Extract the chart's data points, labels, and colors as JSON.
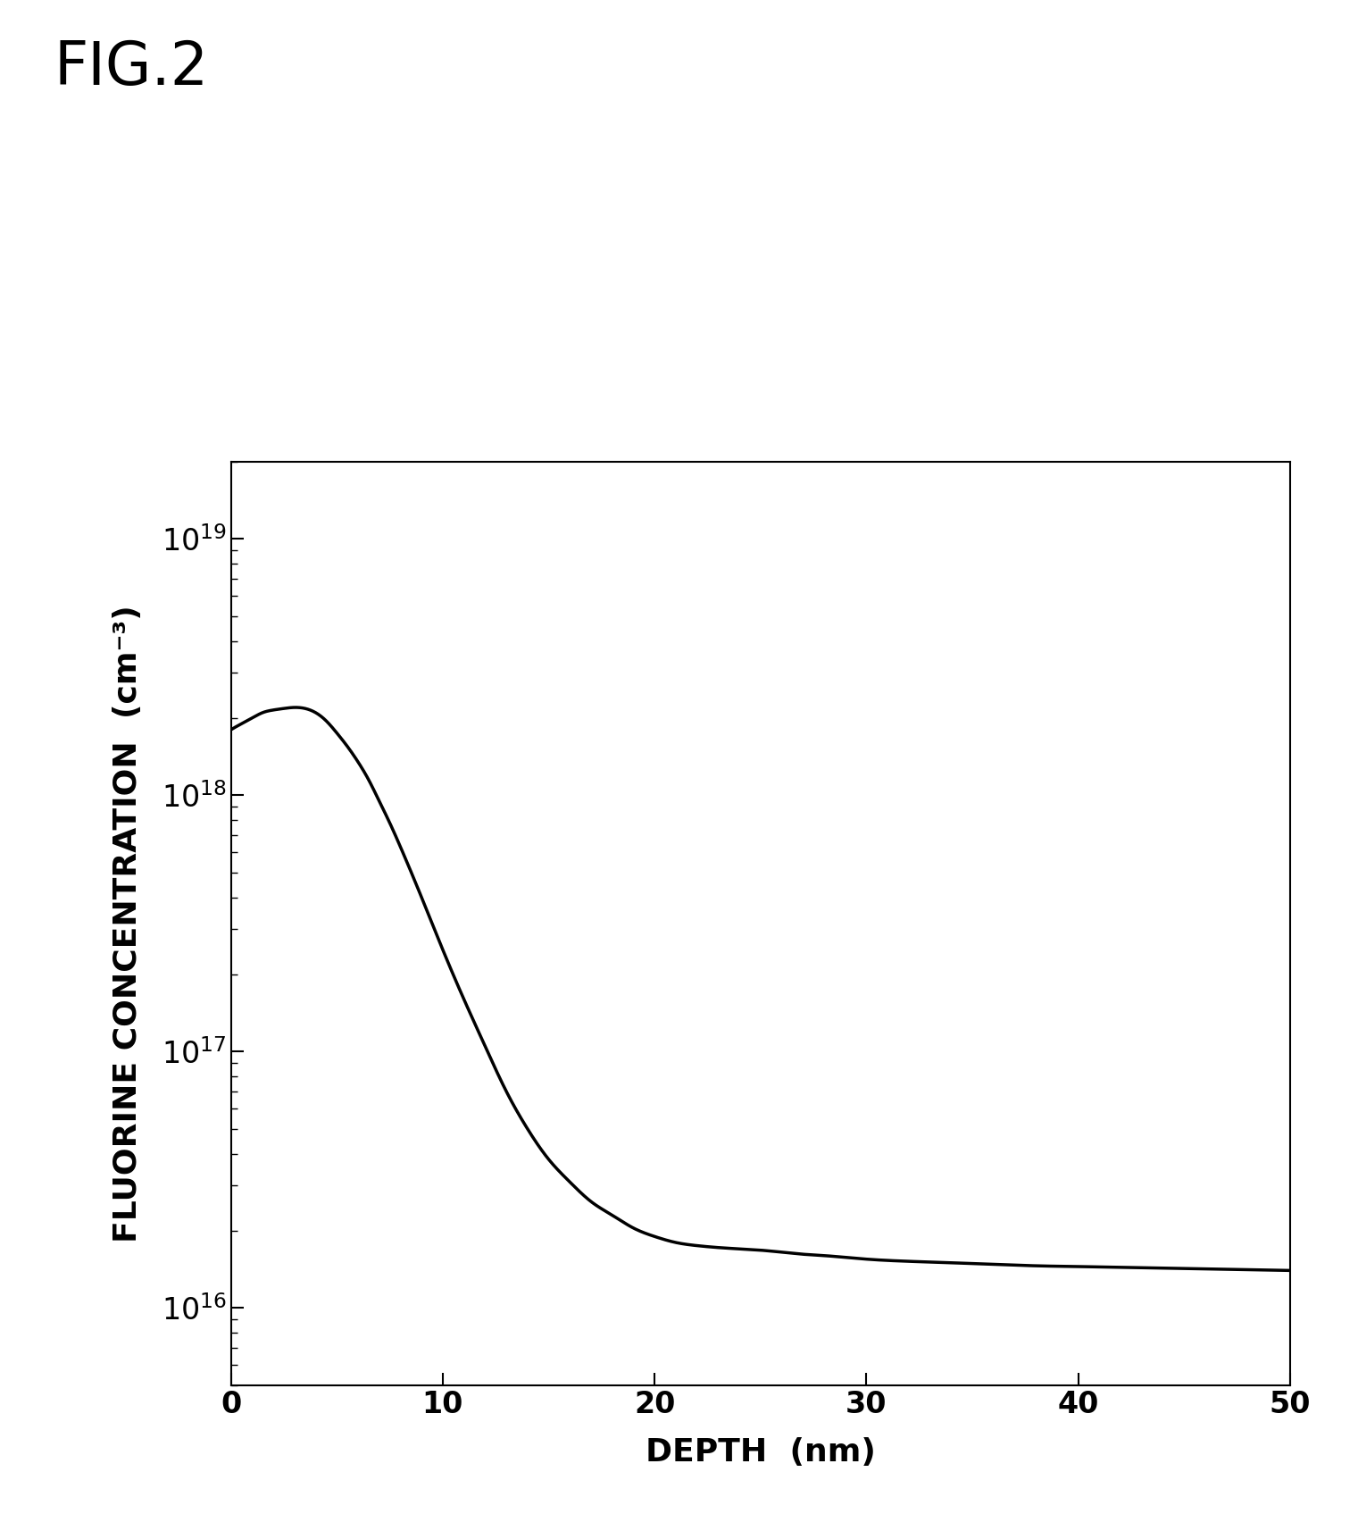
{
  "fig_label": "FIG.2",
  "xlabel": "DEPTH  (nm)",
  "ylabel": "FLUORINE CONCENTRATION  (cm⁻³)",
  "xlim": [
    0,
    50
  ],
  "ylim_log": [
    5000000000000000.0,
    2e+19
  ],
  "xticks": [
    0,
    10,
    20,
    30,
    40,
    50
  ],
  "yticks": [
    1e+16,
    1e+17,
    1e+18,
    1e+19
  ],
  "line_color": "#000000",
  "background_color": "#ffffff",
  "fig_label_fontsize": 48,
  "axis_label_fontsize": 26,
  "tick_label_fontsize": 24,
  "line_width": 2.5,
  "curve_x": [
    0,
    0.5,
    1.0,
    1.5,
    2.0,
    2.5,
    3.0,
    3.5,
    4.0,
    4.5,
    5.0,
    5.5,
    6.0,
    6.5,
    7.0,
    7.5,
    8.0,
    9.0,
    10.0,
    11.0,
    12.0,
    13.0,
    14.0,
    15.0,
    16.0,
    17.0,
    18.0,
    19.0,
    20.0,
    21.0,
    22.0,
    23.0,
    24.0,
    25.0,
    26.0,
    27.0,
    28.0,
    30.0,
    32.0,
    34.0,
    36.0,
    38.0,
    40.0,
    42.0,
    44.0,
    46.0,
    48.0,
    50.0
  ],
  "curve_y": [
    1.8e+18,
    1.9e+18,
    2e+18,
    2.1e+18,
    2.15e+18,
    2.18e+18,
    2.2e+18,
    2.18e+18,
    2.1e+18,
    1.95e+18,
    1.75e+18,
    1.55e+18,
    1.35e+18,
    1.15e+18,
    9.5e+17,
    7.8e+17,
    6.3e+17,
    4e+17,
    2.5e+17,
    1.6e+17,
    1.05e+17,
    7e+16,
    5e+16,
    3.8e+16,
    3.1e+16,
    2.6e+16,
    2.3e+16,
    2.05e+16,
    1.9e+16,
    1.8e+16,
    1.75e+16,
    1.72e+16,
    1.7e+16,
    1.68e+16,
    1.65e+16,
    1.62e+16,
    1.6e+16,
    1.55e+16,
    1.52e+16,
    1.5e+16,
    1.48e+16,
    1.46e+16,
    1.45e+16,
    1.44e+16,
    1.43e+16,
    1.42e+16,
    1.41e+16,
    1.4e+16
  ]
}
